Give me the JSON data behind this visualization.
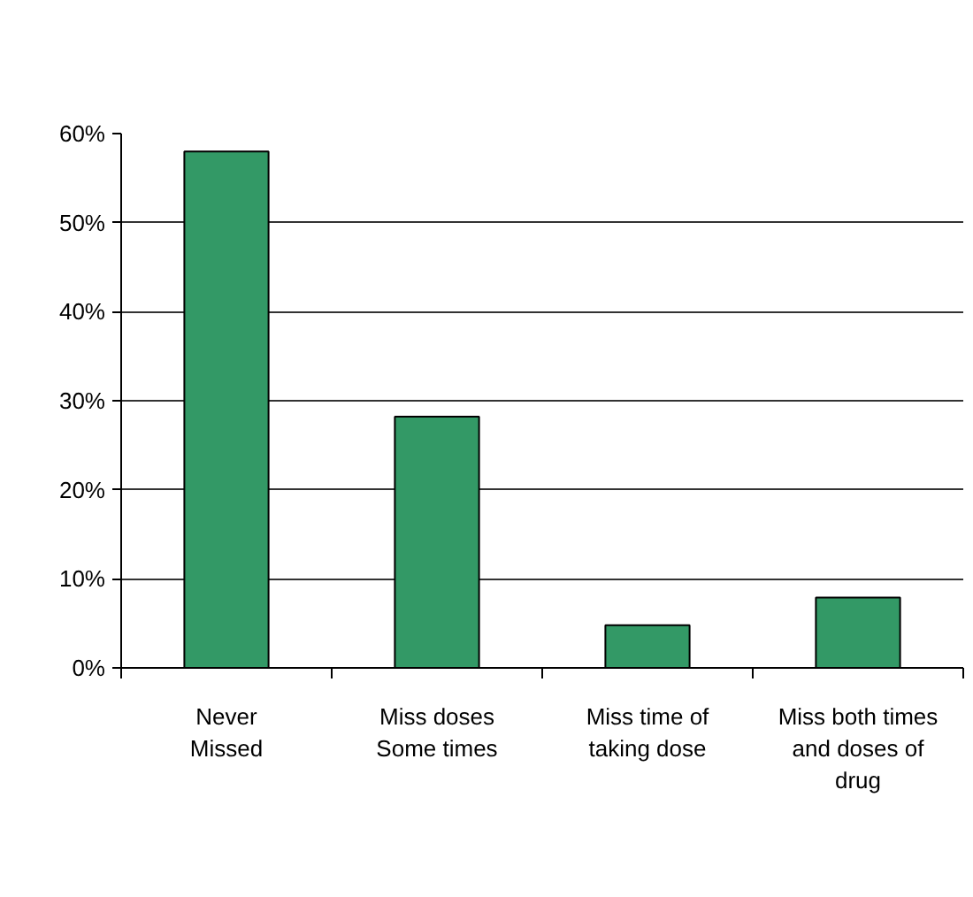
{
  "chart_data": {
    "type": "bar",
    "categories": [
      "Never\nMissed",
      "Miss doses\nSome times",
      "Miss time of\ntaking dose",
      "Miss both times\nand doses of\ndrug"
    ],
    "values": [
      58,
      28.2,
      4.8,
      7.9
    ],
    "color": "#339966",
    "ylim": [
      0,
      60
    ],
    "yticks": [
      {
        "value": 0,
        "label": "0%"
      },
      {
        "value": 10,
        "label": "10%"
      },
      {
        "value": 20,
        "label": "20%"
      },
      {
        "value": 30,
        "label": "30%"
      },
      {
        "value": 40,
        "label": "40%"
      },
      {
        "value": 50,
        "label": "50%"
      },
      {
        "value": 60,
        "label": "60%"
      }
    ],
    "grid": "y"
  }
}
